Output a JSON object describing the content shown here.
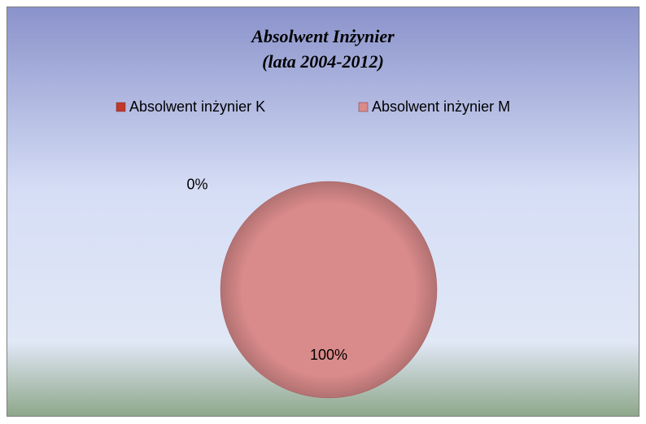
{
  "chart_data": {
    "type": "pie",
    "title": "Absolwent Inżynier",
    "subtitle": "(lata 2004-2012)",
    "categories": [
      "Absolwent inżynier K",
      "Absolwent inżynier M"
    ],
    "values": [
      0,
      100
    ],
    "value_labels": [
      "0%",
      "100%"
    ],
    "colors": [
      "#c0392b",
      "#d98a8a"
    ],
    "legend": "top"
  }
}
